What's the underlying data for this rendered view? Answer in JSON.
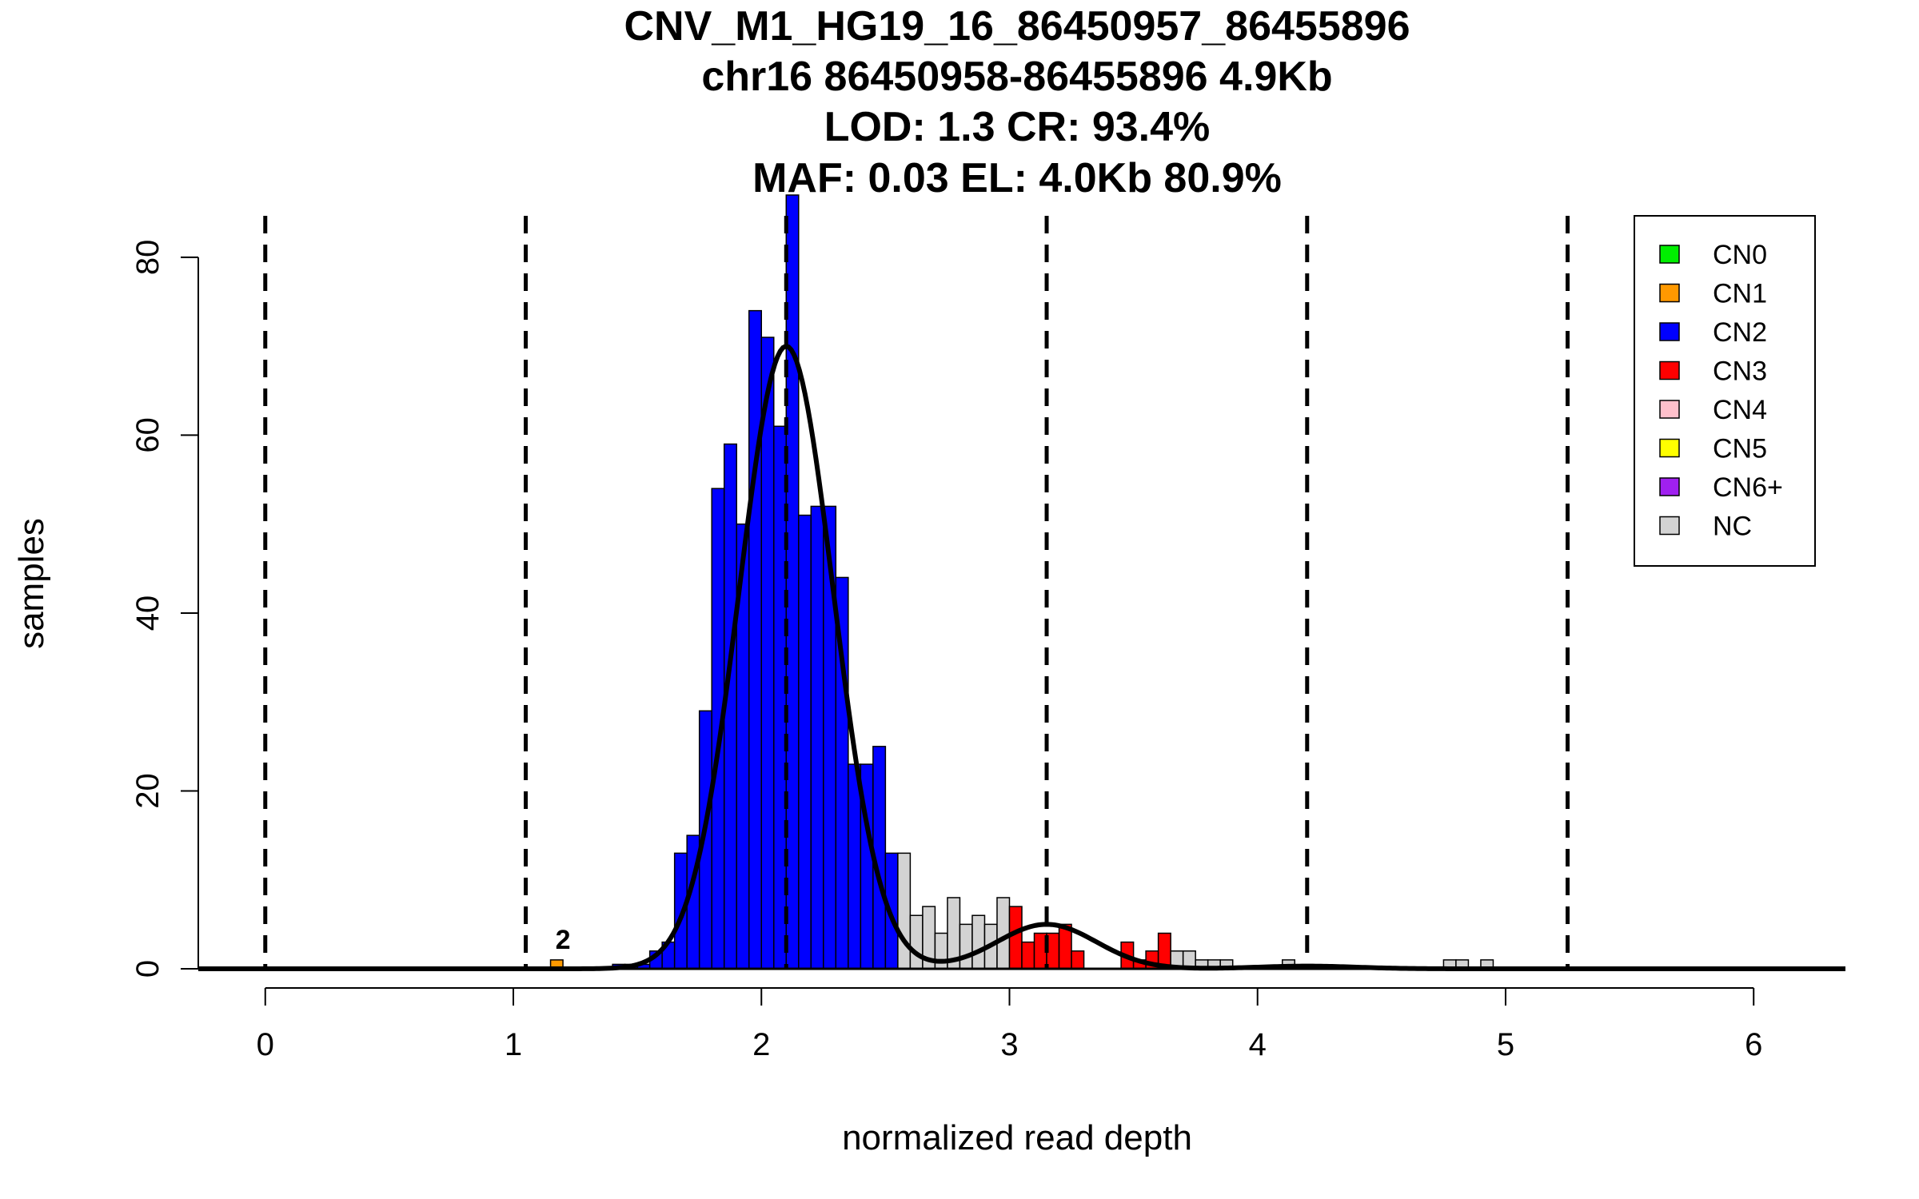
{
  "chart_data": {
    "type": "bar",
    "title_lines": [
      "CNV_M1_HG19_16_86450957_86455896",
      "chr16 86450958-86455896 4.9Kb",
      "LOD: 1.3 CR: 93.4%",
      "MAF: 0.03 EL: 4.0Kb 80.9%"
    ],
    "xlabel": "normalized read depth",
    "ylabel": "samples",
    "xlim": [
      -0.27,
      6.37
    ],
    "ylim": [
      0,
      87
    ],
    "x_ticks": [
      0,
      1,
      2,
      3,
      4,
      5,
      6
    ],
    "y_ticks": [
      0,
      20,
      40,
      60,
      80
    ],
    "bin_width": 0.05,
    "legend_position": "top-right",
    "legend": [
      {
        "label": "CN0",
        "color": "#00ee00"
      },
      {
        "label": "CN1",
        "color": "#ff9900"
      },
      {
        "label": "CN2",
        "color": "#0000ff"
      },
      {
        "label": "CN3",
        "color": "#ff0000"
      },
      {
        "label": "CN4",
        "color": "#ffc0cb"
      },
      {
        "label": "CN5",
        "color": "#ffff00"
      },
      {
        "label": "CN6+",
        "color": "#a020f0"
      },
      {
        "label": "NC",
        "color": "#d3d3d3"
      }
    ],
    "bars": [
      {
        "x": 1.175,
        "count": 1,
        "cn": "CN1"
      },
      {
        "x": 1.425,
        "count": 0.5,
        "cn": "CN2"
      },
      {
        "x": 1.475,
        "count": 0.5,
        "cn": "CN2"
      },
      {
        "x": 1.525,
        "count": 0.5,
        "cn": "CN2"
      },
      {
        "x": 1.575,
        "count": 2,
        "cn": "CN2"
      },
      {
        "x": 1.625,
        "count": 3,
        "cn": "CN2"
      },
      {
        "x": 1.675,
        "count": 13,
        "cn": "CN2"
      },
      {
        "x": 1.725,
        "count": 15,
        "cn": "CN2"
      },
      {
        "x": 1.775,
        "count": 29,
        "cn": "CN2"
      },
      {
        "x": 1.825,
        "count": 54,
        "cn": "CN2"
      },
      {
        "x": 1.875,
        "count": 59,
        "cn": "CN2"
      },
      {
        "x": 1.925,
        "count": 50,
        "cn": "CN2"
      },
      {
        "x": 1.975,
        "count": 74,
        "cn": "CN2"
      },
      {
        "x": 2.025,
        "count": 71,
        "cn": "CN2"
      },
      {
        "x": 2.075,
        "count": 61,
        "cn": "CN2"
      },
      {
        "x": 2.125,
        "count": 87,
        "cn": "CN2"
      },
      {
        "x": 2.175,
        "count": 51,
        "cn": "CN2"
      },
      {
        "x": 2.225,
        "count": 52,
        "cn": "CN2"
      },
      {
        "x": 2.275,
        "count": 52,
        "cn": "CN2"
      },
      {
        "x": 2.325,
        "count": 44,
        "cn": "CN2"
      },
      {
        "x": 2.375,
        "count": 23,
        "cn": "CN2"
      },
      {
        "x": 2.425,
        "count": 23,
        "cn": "CN2"
      },
      {
        "x": 2.475,
        "count": 25,
        "cn": "CN2"
      },
      {
        "x": 2.525,
        "count": 13,
        "cn": "CN2"
      },
      {
        "x": 2.575,
        "count": 13,
        "cn": "NC"
      },
      {
        "x": 2.625,
        "count": 6,
        "cn": "NC"
      },
      {
        "x": 2.675,
        "count": 7,
        "cn": "NC"
      },
      {
        "x": 2.725,
        "count": 4,
        "cn": "NC"
      },
      {
        "x": 2.775,
        "count": 8,
        "cn": "NC"
      },
      {
        "x": 2.825,
        "count": 5,
        "cn": "NC"
      },
      {
        "x": 2.875,
        "count": 6,
        "cn": "NC"
      },
      {
        "x": 2.925,
        "count": 5,
        "cn": "NC"
      },
      {
        "x": 2.975,
        "count": 8,
        "cn": "NC"
      },
      {
        "x": 3.025,
        "count": 7,
        "cn": "CN3"
      },
      {
        "x": 3.075,
        "count": 3,
        "cn": "CN3"
      },
      {
        "x": 3.125,
        "count": 4,
        "cn": "CN3"
      },
      {
        "x": 3.175,
        "count": 4,
        "cn": "CN3"
      },
      {
        "x": 3.225,
        "count": 5,
        "cn": "CN3"
      },
      {
        "x": 3.275,
        "count": 2,
        "cn": "CN3"
      },
      {
        "x": 3.475,
        "count": 3,
        "cn": "CN3"
      },
      {
        "x": 3.525,
        "count": 1,
        "cn": "CN3"
      },
      {
        "x": 3.575,
        "count": 2,
        "cn": "CN3"
      },
      {
        "x": 3.625,
        "count": 4,
        "cn": "CN3"
      },
      {
        "x": 3.675,
        "count": 2,
        "cn": "NC"
      },
      {
        "x": 3.725,
        "count": 2,
        "cn": "NC"
      },
      {
        "x": 3.775,
        "count": 1,
        "cn": "NC"
      },
      {
        "x": 3.825,
        "count": 1,
        "cn": "NC"
      },
      {
        "x": 3.875,
        "count": 1,
        "cn": "NC"
      },
      {
        "x": 4.125,
        "count": 1,
        "cn": "NC"
      },
      {
        "x": 4.775,
        "count": 1,
        "cn": "NC"
      },
      {
        "x": 4.825,
        "count": 1,
        "cn": "NC"
      },
      {
        "x": 4.925,
        "count": 1,
        "cn": "NC"
      }
    ],
    "dashed_lines_x": [
      0,
      1.05,
      2.1,
      3.15,
      4.2,
      5.25
    ],
    "fit_components": [
      {
        "mean": 2.1,
        "sd": 0.19,
        "peak": 70
      },
      {
        "mean": 3.15,
        "sd": 0.2,
        "peak": 5
      },
      {
        "mean": 4.2,
        "sd": 0.2,
        "peak": 0.3
      }
    ],
    "annotations": [
      {
        "x": 1.2,
        "y": 1,
        "text": "2"
      }
    ]
  }
}
